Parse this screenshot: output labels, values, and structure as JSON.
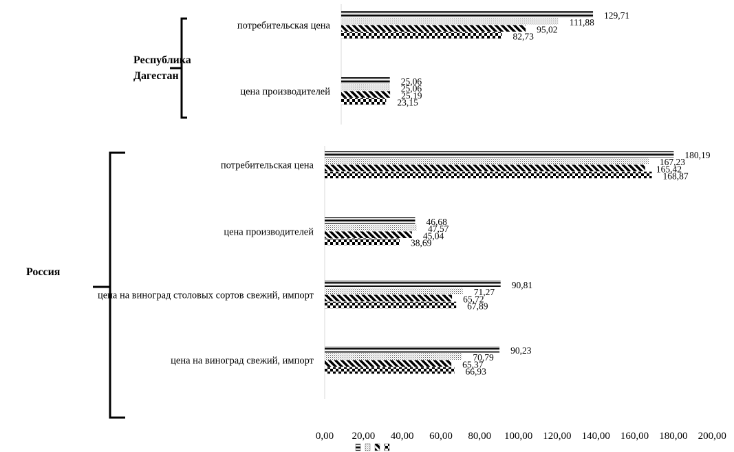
{
  "chart_data": [
    {
      "type": "bar",
      "orientation": "horizontal",
      "group": [
        "Республика",
        "Дагестан"
      ],
      "categories": [
        "потребительская цена",
        "цена производителей"
      ],
      "series": [
        {
          "pattern": "horizontal-lines",
          "values": [
            129.71,
            25.06
          ]
        },
        {
          "pattern": "dots",
          "values": [
            111.88,
            25.06
          ]
        },
        {
          "pattern": "diagonal-stripes",
          "values": [
            95.02,
            25.19
          ]
        },
        {
          "pattern": "checkerboard",
          "values": [
            82.73,
            23.15
          ]
        }
      ],
      "value_labels": [
        [
          "129,71",
          "111,88",
          "95,02",
          "82,73"
        ],
        [
          "25,06",
          "25,06",
          "25,19",
          "23,15"
        ]
      ]
    },
    {
      "type": "bar",
      "orientation": "horizontal",
      "group": [
        "Россия"
      ],
      "categories": [
        "потребительская цена",
        "цена производителей",
        "цена на виноград столовых сортов свежий, импорт",
        "цена на виноград свежий, импорт"
      ],
      "series": [
        {
          "pattern": "horizontal-lines",
          "values": [
            180.19,
            46.68,
            90.81,
            90.23
          ]
        },
        {
          "pattern": "dots",
          "values": [
            167.23,
            47.57,
            71.27,
            70.79
          ]
        },
        {
          "pattern": "diagonal-stripes",
          "values": [
            165.42,
            45.04,
            65.72,
            65.37
          ]
        },
        {
          "pattern": "checkerboard",
          "values": [
            168.87,
            38.69,
            67.89,
            66.93
          ]
        }
      ],
      "value_labels": [
        [
          "180,19",
          "167,23",
          "165,42",
          "168,87"
        ],
        [
          "46,68",
          "47,57",
          "45,04",
          "38,69"
        ],
        [
          "90,81",
          "71,27",
          "65,72",
          "67,89"
        ],
        [
          "90,23",
          "70,79",
          "65,37",
          "66,93"
        ]
      ],
      "xlim": [
        0,
        200
      ],
      "xticks": [
        "0,00",
        "20,00",
        "40,00",
        "60,00",
        "80,00",
        "100,00",
        "120,00",
        "140,00",
        "160,00",
        "180,00",
        "200,00"
      ]
    }
  ],
  "legend": {
    "placement": "bottom-center",
    "entries": [
      {
        "pattern": "horizontal-lines",
        "label": ""
      },
      {
        "pattern": "dots",
        "label": ""
      },
      {
        "pattern": "diagonal-stripes",
        "label": ""
      },
      {
        "pattern": "checkerboard",
        "label": ""
      }
    ]
  }
}
